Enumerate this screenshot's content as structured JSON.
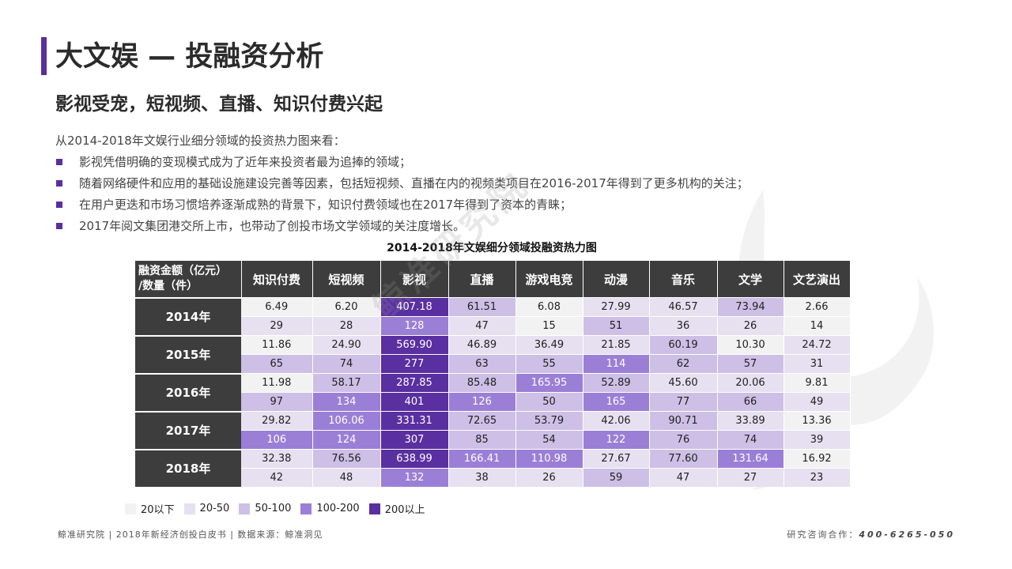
{
  "title": "大文娱 — 投融资分析",
  "subtitle": "影视受宠，短视频、直播、知识付费兴起",
  "intro": "从2014-2018年文娱行业细分领域的投资热力图来看：",
  "bullets": [
    "影视凭借明确的变现模式成为了近年来投资者最为追捧的领域；",
    "随着网络硬件和应用的基础设施建设完善等因素，包括短视频、直播在内的视频类项目在2016-2017年得到了更多机构的关注；",
    "在用户更迭和市场习惯培养逐渐成熟的背景下，知识付费领域也在2017年得到了资本的青睐；",
    "2017年阅文集团港交所上市，也带动了创投市场文学领域的关注度增长。"
  ],
  "colors": {
    "accent": "#5b2e9e",
    "header": "#3d3d3d",
    "bin_colors": [
      "#f2f2f2",
      "#e6e0f1",
      "#cdbfe6",
      "#9b7fd6",
      "#5a2fa0"
    ]
  },
  "chart_data": {
    "type": "table",
    "title": "2014-2018年文娱细分领域投融资热力图",
    "corner_label": [
      "融资金额（亿元）",
      "/数量（件）"
    ],
    "columns": [
      "知识付费",
      "短视频",
      "影视",
      "直播",
      "游戏电竞",
      "动漫",
      "音乐",
      "文学",
      "文艺演出"
    ],
    "rows": [
      {
        "year": "2014年",
        "amount": [
          "6.49",
          "6.20",
          "407.18",
          "61.51",
          "6.08",
          "27.99",
          "46.57",
          "73.94",
          "2.66"
        ],
        "count": [
          "29",
          "28",
          "128",
          "47",
          "15",
          "51",
          "36",
          "26",
          "14"
        ]
      },
      {
        "year": "2015年",
        "amount": [
          "11.86",
          "24.90",
          "569.90",
          "46.89",
          "36.49",
          "21.85",
          "60.19",
          "10.30",
          "24.72"
        ],
        "count": [
          "65",
          "74",
          "277",
          "63",
          "55",
          "114",
          "62",
          "57",
          "31"
        ]
      },
      {
        "year": "2016年",
        "amount": [
          "11.98",
          "58.17",
          "287.85",
          "85.48",
          "165.95",
          "52.89",
          "45.60",
          "20.06",
          "9.81"
        ],
        "count": [
          "97",
          "134",
          "401",
          "126",
          "50",
          "165",
          "77",
          "66",
          "49"
        ]
      },
      {
        "year": "2017年",
        "amount": [
          "29.82",
          "106.06",
          "331.31",
          "72.65",
          "53.79",
          "42.06",
          "90.71",
          "33.89",
          "13.36"
        ],
        "count": [
          "106",
          "124",
          "307",
          "85",
          "54",
          "122",
          "76",
          "74",
          "39"
        ]
      },
      {
        "year": "2018年",
        "amount": [
          "32.38",
          "76.56",
          "638.99",
          "166.41",
          "110.98",
          "27.67",
          "77.60",
          "131.64",
          "16.92"
        ],
        "count": [
          "42",
          "48",
          "132",
          "38",
          "26",
          "59",
          "47",
          "27",
          "23"
        ]
      }
    ],
    "legend": [
      "20以下",
      "20-50",
      "50-100",
      "100-200",
      "200以上"
    ],
    "bin_thresholds": [
      20,
      50,
      100,
      200
    ]
  },
  "footer": {
    "left": "鲸准研究院 | 2018年新经济创投白皮书 | 数据来源：鲸准洞见",
    "right_label": "研究咨询合作：",
    "phone": "400-6265-050"
  },
  "watermark": "鲸准研究院"
}
